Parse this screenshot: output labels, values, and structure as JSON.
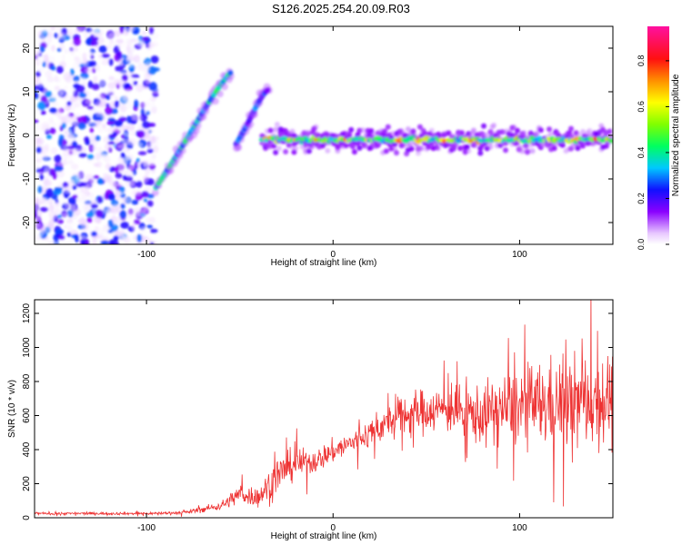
{
  "title": "S126.2025.254.20.09.R03",
  "chart_data": [
    {
      "type": "heatmap",
      "xlabel": "Height of straight line (km)",
      "ylabel": "Frequency (Hz)",
      "xlim": [
        -160,
        150
      ],
      "ylim": [
        -25,
        25
      ],
      "xticks": [
        -100,
        0,
        100
      ],
      "yticks": [
        -20,
        -10,
        0,
        10,
        20
      ],
      "colorbar": {
        "label": "Normalized spectral amplitude",
        "range": [
          0,
          0.95
        ],
        "ticks": [
          0.0,
          0.2,
          0.4,
          0.6,
          0.8
        ],
        "tick_labels": [
          "0.0",
          "0.2",
          "0.4",
          "0.6",
          "0.8"
        ]
      },
      "features": [
        {
          "name": "diffuse noise",
          "x_range": [
            -160,
            -95
          ],
          "y_range": [
            -25,
            25
          ],
          "amplitude": 0.15
        },
        {
          "name": "rising chirp",
          "x_start": -95,
          "x_end": -55,
          "y_start": -12,
          "y_end": 14,
          "amplitude": 0.35
        },
        {
          "name": "secondary chirp",
          "x_start": -52,
          "x_end": -35,
          "y_start": -2,
          "y_end": 10,
          "amplitude": 0.25
        },
        {
          "name": "steady tone",
          "x_start": -38,
          "x_end": 150,
          "y": -1,
          "amplitude": 0.6
        }
      ]
    },
    {
      "type": "line",
      "xlabel": "Height of straight line (km)",
      "ylabel": "SNR (10 * v/v)",
      "xlim": [
        -160,
        150
      ],
      "ylim": [
        0,
        1280
      ],
      "xticks": [
        -100,
        0,
        100
      ],
      "yticks": [
        0,
        200,
        400,
        600,
        800,
        1000,
        1200
      ],
      "series": [
        {
          "name": "SNR",
          "color": "#ee3333",
          "trend_x": [
            -160,
            -100,
            -80,
            -60,
            -50,
            -40,
            -30,
            -20,
            -10,
            0,
            10,
            20,
            30,
            40,
            50,
            60,
            70,
            80,
            90,
            100,
            110,
            120,
            130,
            140,
            150
          ],
          "trend_y": [
            25,
            25,
            30,
            70,
            140,
            120,
            250,
            320,
            330,
            390,
            440,
            500,
            560,
            610,
            630,
            640,
            620,
            600,
            640,
            650,
            660,
            670,
            680,
            690,
            700
          ],
          "spread": [
            8,
            8,
            10,
            25,
            60,
            60,
            110,
            90,
            70,
            70,
            70,
            80,
            100,
            130,
            130,
            130,
            150,
            180,
            200,
            230,
            250,
            260,
            270,
            280,
            280
          ]
        }
      ]
    }
  ]
}
